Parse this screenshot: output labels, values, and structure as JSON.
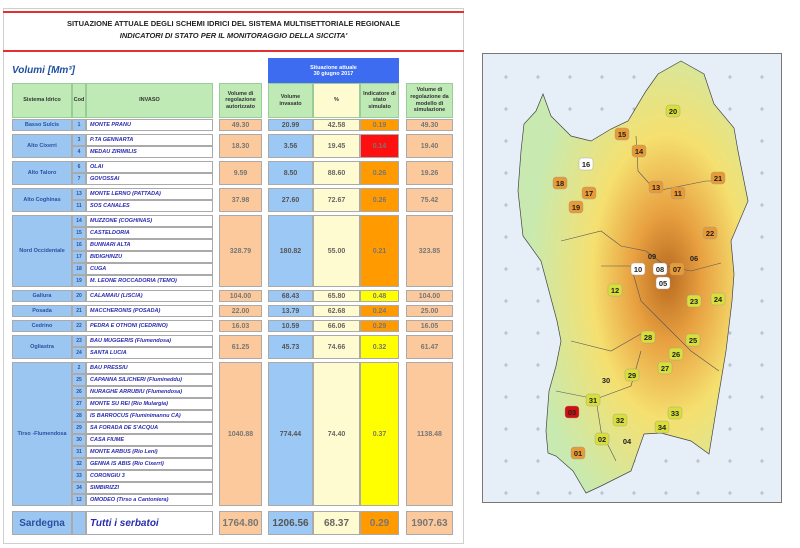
{
  "title": {
    "line1": "SITUAZIONE ATTUALE DEGLI SCHEMI IDRICI DEL SISTEMA MULTISETTORIALE REGIONALE",
    "line2": "INDICATORI DI STATO PER IL MONITORAGGIO DELLA SICCITA'"
  },
  "units": "Volumi [Mm³]",
  "situazione": {
    "line1": "Situazione attuale",
    "line2": "30 giugno 2017"
  },
  "headers": {
    "sistema": "Sistema Idrico",
    "cod": "Cod",
    "invaso": "INVASO",
    "vol_reg": "Volume di regolazione autorizzato",
    "vol_inv": "Volume invasato",
    "pct": "%",
    "ind": "Indicatore di stato simulato",
    "vol_mod": "Volume di regolazione da modello di simulazione"
  },
  "colors": {
    "red": "#ff1010",
    "orange": "#ff9a00",
    "yellow": "#ffff00"
  },
  "groups": [
    {
      "sistema": "Basso Sulcis",
      "invasi": [
        [
          "1",
          "MONTE PRANU"
        ]
      ],
      "vol_reg": "49.30",
      "vol_inv": "20.99",
      "pct": "42.58",
      "ind": "0.19",
      "ind_color": "orange",
      "vol_mod": "49.30"
    },
    {
      "sistema": "Alto Cixerri",
      "invasi": [
        [
          "3",
          "P.TA GENNARTA"
        ],
        [
          "4",
          "MEDAU ZIRIMILIS"
        ]
      ],
      "vol_reg": "18.30",
      "vol_inv": "3.56",
      "pct": "19.45",
      "ind": "0.14",
      "ind_color": "red",
      "vol_mod": "19.40"
    },
    {
      "sistema": "Alto Taloro",
      "invasi": [
        [
          "6",
          "OLAI"
        ],
        [
          "7",
          "GOVOSSAI"
        ]
      ],
      "vol_reg": "9.59",
      "vol_inv": "8.50",
      "pct": "88.60",
      "ind": "0.26",
      "ind_color": "orange",
      "vol_mod": "19.26"
    },
    {
      "sistema": "Alto Coghinas",
      "invasi": [
        [
          "13",
          "MONTE LERNO (PATTADA)"
        ],
        [
          "11",
          "SOS CANALES"
        ]
      ],
      "vol_reg": "37.98",
      "vol_inv": "27.60",
      "pct": "72.67",
      "ind": "0.26",
      "ind_color": "orange",
      "vol_mod": "75.42"
    },
    {
      "sistema": "Nord Occidentale",
      "invasi": [
        [
          "14",
          "MUZZONE (COGHINAS)"
        ],
        [
          "15",
          "CASTELDORIA"
        ],
        [
          "16",
          "BUNNARI ALTA"
        ],
        [
          "17",
          "BIDIGHINZU"
        ],
        [
          "18",
          "CUGA"
        ],
        [
          "19",
          "M. LEONE ROCCADORIA (TEMO)"
        ]
      ],
      "vol_reg": "328.79",
      "vol_inv": "180.82",
      "pct": "55.00",
      "ind": "0.21",
      "ind_color": "orange",
      "vol_mod": "323.85"
    },
    {
      "sistema": "Gallura",
      "invasi": [
        [
          "20",
          "CALAMAIU (LISCIA)"
        ]
      ],
      "vol_reg": "104.00",
      "vol_inv": "68.43",
      "pct": "65.80",
      "ind": "0.48",
      "ind_color": "yellow",
      "vol_mod": "104.00"
    },
    {
      "sistema": "Posada",
      "invasi": [
        [
          "21",
          "MACCHERONIS (POSADA)"
        ]
      ],
      "vol_reg": "22.00",
      "vol_inv": "13.79",
      "pct": "62.68",
      "ind": "0.24",
      "ind_color": "orange",
      "vol_mod": "25.00"
    },
    {
      "sistema": "Cedrino",
      "invasi": [
        [
          "22",
          "PEDRA E OTHONI (CEDRINO)"
        ]
      ],
      "vol_reg": "16.03",
      "vol_inv": "10.59",
      "pct": "66.06",
      "ind": "0.29",
      "ind_color": "orange",
      "vol_mod": "16.05"
    },
    {
      "sistema": "Ogliastra",
      "invasi": [
        [
          "23",
          "BAU MUGGERIS (Flumendosa)"
        ],
        [
          "24",
          "SANTA LUCIA"
        ]
      ],
      "vol_reg": "61.25",
      "vol_inv": "45.73",
      "pct": "74.66",
      "ind": "0.32",
      "ind_color": "yellow",
      "vol_mod": "61.47"
    },
    {
      "sistema": "Tirso -Flumendosa",
      "invasi": [
        [
          "2",
          "BAU PRESSIU"
        ],
        [
          "25",
          "CAPANNA SILICHERI (Flumineddu)"
        ],
        [
          "26",
          "NURAGHE ARRUBIU (Flumendosa)"
        ],
        [
          "27",
          "MONTE SU REI (Rio Mulargia)"
        ],
        [
          "28",
          "IS BARROCUS (Fluminimannu CA)"
        ],
        [
          "29",
          "SA FORADA DE S'ACQUA"
        ],
        [
          "30",
          "CASA FIUME"
        ],
        [
          "31",
          "MONTE ARBUS  (Rio Leni)"
        ],
        [
          "32",
          "GENNA IS ABIS  (Rio Cixerri)"
        ],
        [
          "33",
          "CORONGIU 3"
        ],
        [
          "34",
          "SIMBIRIZZI"
        ],
        [
          "12",
          "OMODEO (Tirso a Cantoniera)"
        ]
      ],
      "vol_reg": "1040.88",
      "vol_inv": "774.44",
      "pct": "74.40",
      "ind": "0.37",
      "ind_color": "yellow",
      "vol_mod": "1138.48"
    }
  ],
  "total": {
    "sistema": "Sardegna",
    "label": "Tutti i serbatoi",
    "vol_reg": "1764.80",
    "vol_inv": "1206.56",
    "pct": "68.37",
    "ind": "0.29",
    "ind_color": "orange",
    "vol_mod": "1907.63"
  },
  "map": {
    "markers": [
      {
        "id": "20",
        "c": "#d8df3a"
      },
      {
        "id": "15",
        "c": "#e89a35"
      },
      {
        "id": "14",
        "c": "#e89a35"
      },
      {
        "id": "16",
        "c": "#ffffff"
      },
      {
        "id": "18",
        "c": "#e89a35"
      },
      {
        "id": "17",
        "c": "#e89a35"
      },
      {
        "id": "19",
        "c": "#e89a35"
      },
      {
        "id": "13",
        "c": "#e89a35"
      },
      {
        "id": "11",
        "c": "#e89a35"
      },
      {
        "id": "21",
        "c": "#e89a35"
      },
      {
        "id": "22",
        "c": "#e89a35"
      },
      {
        "id": "09",
        "c": "none"
      },
      {
        "id": "10",
        "c": "#ffffff"
      },
      {
        "id": "08",
        "c": "#ffffff"
      },
      {
        "id": "07",
        "c": "#e89a35"
      },
      {
        "id": "06",
        "c": "none"
      },
      {
        "id": "05",
        "c": "#ffffff"
      },
      {
        "id": "12",
        "c": "#d8df3a"
      },
      {
        "id": "23",
        "c": "#d8df3a"
      },
      {
        "id": "24",
        "c": "#d8df3a"
      },
      {
        "id": "28",
        "c": "#d8df3a"
      },
      {
        "id": "25",
        "c": "#d8df3a"
      },
      {
        "id": "26",
        "c": "#d8df3a"
      },
      {
        "id": "27",
        "c": "#d8df3a"
      },
      {
        "id": "29",
        "c": "#d8df3a"
      },
      {
        "id": "30",
        "c": "none"
      },
      {
        "id": "31",
        "c": "#d8df3a"
      },
      {
        "id": "03",
        "c": "#d01010"
      },
      {
        "id": "32",
        "c": "#d8df3a"
      },
      {
        "id": "33",
        "c": "#d8df3a"
      },
      {
        "id": "34",
        "c": "#d8df3a"
      },
      {
        "id": "02",
        "c": "#d8df3a"
      },
      {
        "id": "04",
        "c": "none"
      },
      {
        "id": "01",
        "c": "#e89a35"
      }
    ]
  }
}
